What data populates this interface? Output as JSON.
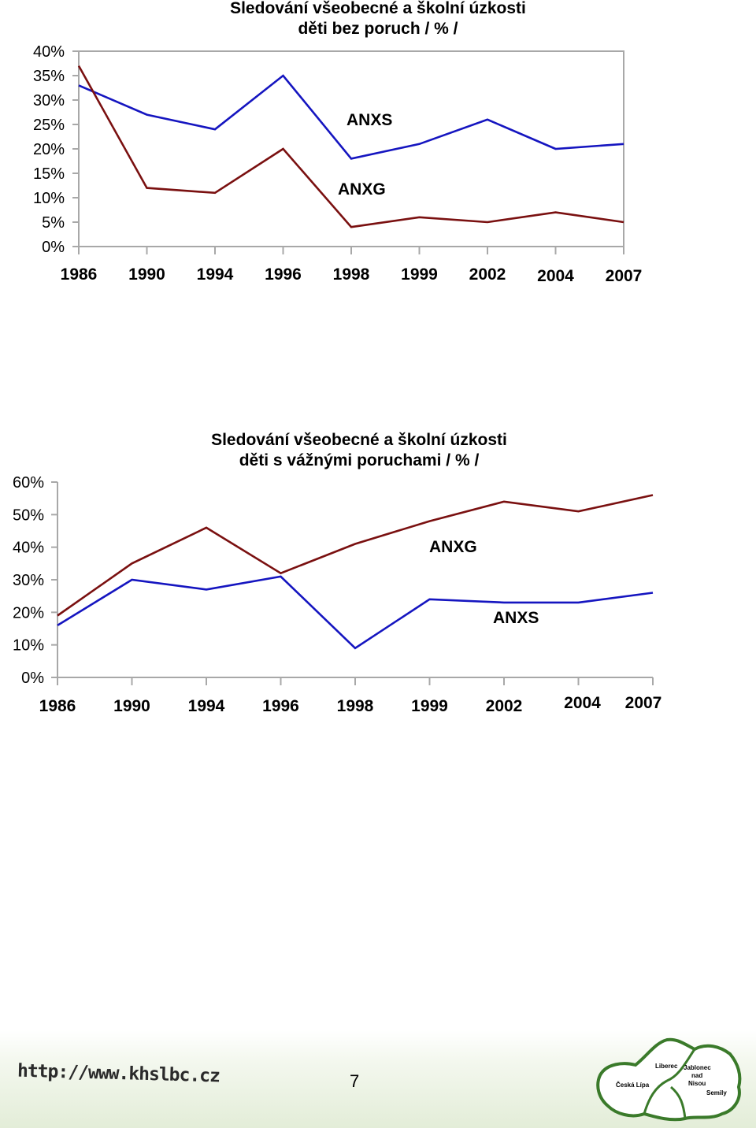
{
  "chart_data": [
    {
      "type": "line",
      "title": "Sledování všeobecné a školní úzkosti",
      "subtitle": "děti bez poruch / % /",
      "categories": [
        "1986",
        "1990",
        "1994",
        "1996",
        "1998",
        "1999",
        "2002",
        "2004",
        "2007"
      ],
      "ylim": [
        0,
        40
      ],
      "yticks": [
        0,
        5,
        10,
        15,
        20,
        25,
        30,
        35,
        40
      ],
      "ytick_labels": [
        "0%",
        "5%",
        "10%",
        "15%",
        "20%",
        "25%",
        "30%",
        "35%",
        "40%"
      ],
      "grid": false,
      "series": [
        {
          "name": "ANXS",
          "color": "#1515c0",
          "values": [
            33,
            27,
            24,
            35,
            18,
            21,
            26,
            20,
            21
          ]
        },
        {
          "name": "ANXG",
          "color": "#7a1010",
          "values": [
            37,
            12,
            11,
            20,
            4,
            6,
            5,
            7,
            5
          ]
        }
      ]
    },
    {
      "type": "line",
      "title": "Sledování všeobecné a školní úzkosti",
      "subtitle": "děti s vážnými poruchami / % /",
      "categories": [
        "1986",
        "1990",
        "1994",
        "1996",
        "1998",
        "1999",
        "2002",
        "2004",
        "2007"
      ],
      "ylim": [
        0,
        60
      ],
      "yticks": [
        0,
        10,
        20,
        30,
        40,
        50,
        60
      ],
      "ytick_labels": [
        "0%",
        "10%",
        "20%",
        "30%",
        "40%",
        "50%",
        "60%"
      ],
      "grid": false,
      "series": [
        {
          "name": "ANXG",
          "color": "#7a1010",
          "values": [
            19,
            35,
            46,
            32,
            41,
            48,
            54,
            51,
            56
          ]
        },
        {
          "name": "ANXS",
          "color": "#1515c0",
          "values": [
            16,
            30,
            27,
            31,
            9,
            24,
            23,
            23,
            26
          ]
        }
      ]
    }
  ],
  "footer": {
    "url": "http://www.khslbc.cz",
    "page_number": "7",
    "logo_labels": [
      "Liberec",
      "Jablonec",
      "nad",
      "Nisou",
      "Česká Lípa",
      "Semily"
    ]
  }
}
